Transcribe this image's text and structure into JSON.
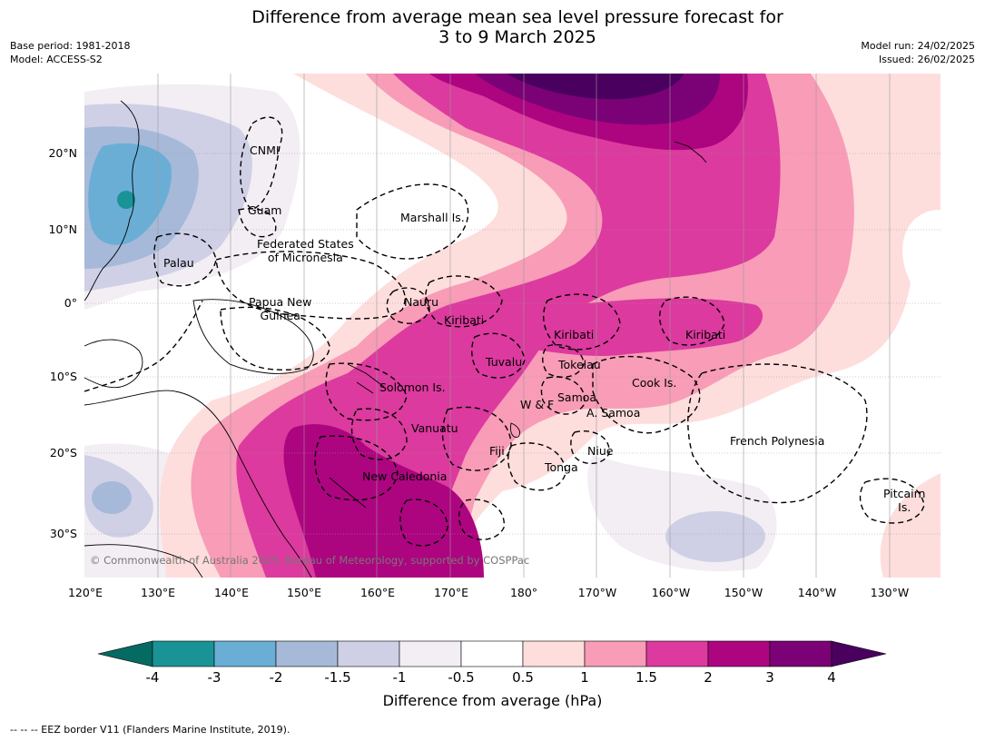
{
  "title": {
    "line1": "Difference from average mean sea level pressure forecast for",
    "line2": "3 to 9 March 2025"
  },
  "meta_left": {
    "base_period": "Base period: 1981-2018",
    "model": "Model: ACCESS-S2"
  },
  "meta_right": {
    "model_run": "Model run: 24/02/2025",
    "issued": "Issued: 26/02/2025"
  },
  "map": {
    "lat_ticks": [
      "20°N",
      "10°N",
      "0°",
      "10°S",
      "20°S",
      "30°S"
    ],
    "lon_ticks": [
      "120°E",
      "130°E",
      "140°E",
      "150°E",
      "160°E",
      "170°E",
      "180°",
      "170°W",
      "160°W",
      "150°W",
      "140°W",
      "130°W"
    ],
    "labels": {
      "cnmi": "CNMI",
      "guam": "Guam",
      "marshall": "Marshall Is.",
      "fsm_line1": "Federated States",
      "fsm_line2": "of Micronesia",
      "palau": "Palau",
      "png_line1": "Papua New",
      "png_line2": "Guinea",
      "nauru": "Nauru",
      "kiribati_west": "Kiribati",
      "kiribati_central": "Kiribati",
      "kiribati_east": "Kiribati",
      "tuvalu": "Tuvalu",
      "tokelau": "Tokelau",
      "solomon": "Solomon Is.",
      "samoa": "Samoa",
      "wf": "W & F",
      "amsamoa": "A. Samoa",
      "cook": "Cook Is.",
      "vanuatu": "Vanuatu",
      "fiji": "Fiji",
      "niue": "Niue",
      "tonga": "Tonga",
      "new_caledonia": "New Caledonia",
      "french_polynesia": "French Polynesia",
      "pitcairn_line1": "Pitcairn",
      "pitcairn_line2": "Is."
    },
    "copyright": "© Commonwealth of Australia 2025, Bureau of Meteorology, supported by COSPPac"
  },
  "colorbar": {
    "ticks": [
      "-4",
      "-3",
      "-2",
      "-1.5",
      "-1",
      "-0.5",
      "0.5",
      "1",
      "1.5",
      "2",
      "3",
      "4"
    ],
    "colors": [
      "#046b62",
      "#1a9396",
      "#6aaed6",
      "#a6b9d9",
      "#cfd0e6",
      "#f3eef4",
      "#ffffff",
      "#fddedd",
      "#f89cb7",
      "#dc3a9e",
      "#ad0480",
      "#7a0176",
      "#4a005e"
    ],
    "title": "Difference from average (hPa)"
  },
  "footnote": "--  --  -- EEZ border V11 (Flanders Marine Institute, 2019)."
}
